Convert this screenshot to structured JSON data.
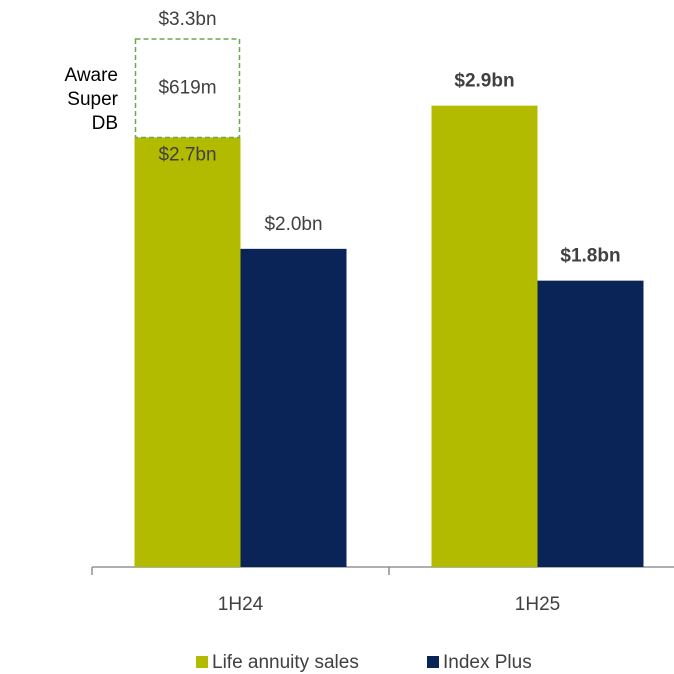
{
  "chart_data": {
    "type": "bar",
    "categories": [
      "1H24",
      "1H25"
    ],
    "series": [
      {
        "name": "Life annuity sales",
        "color": "#b3bb00",
        "values": [
          2.7,
          2.9
        ],
        "value_labels": [
          "$2.7bn",
          "$2.9bn"
        ]
      },
      {
        "name": "Index Plus",
        "color": "#0b2457",
        "values": [
          2.0,
          1.8
        ],
        "value_labels": [
          "$2.0bn",
          "$1.8bn"
        ]
      }
    ],
    "stack_segment": {
      "name": "Aware Super DB",
      "value": 0.619,
      "value_label": "$619m",
      "total": 3.3,
      "total_label": "$3.3bn",
      "color": "#6aa84f"
    }
  }
}
